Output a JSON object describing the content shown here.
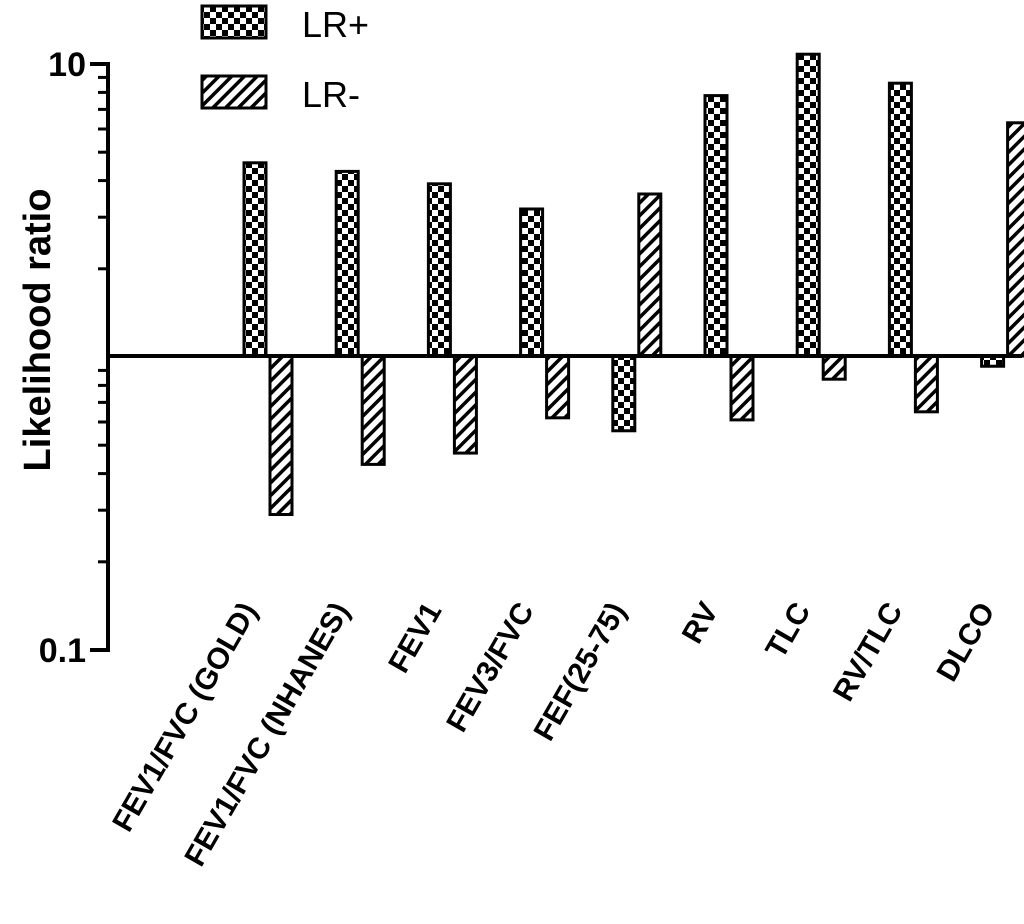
{
  "chart_data": {
    "type": "bar",
    "ylabel": "Likelihood ratio",
    "yscale": "log",
    "ylim": [
      0.1,
      10
    ],
    "yticks": [
      {
        "value": 0.1,
        "label": "0.1"
      },
      {
        "value": 10,
        "label": "10"
      }
    ],
    "baseline": 1,
    "categories": [
      "FEV1/FVC (GOLD)",
      "FEV1/FVC (NHANES)",
      "FEV1",
      "FEV3/FVC",
      "FEF(25-75)",
      "RV",
      "TLC",
      "RV/TLC",
      "DLCO"
    ],
    "series": [
      {
        "name": "LR+",
        "pattern": "checker",
        "values": [
          4.6,
          4.3,
          3.9,
          3.2,
          0.56,
          7.8,
          10.8,
          8.6,
          0.93
        ]
      },
      {
        "name": "LR-",
        "pattern": "hatch",
        "values": [
          0.29,
          0.43,
          0.47,
          0.62,
          3.6,
          0.61,
          0.84,
          0.65,
          6.3
        ]
      }
    ],
    "legend_position": "top-left",
    "colors": {
      "ink": "#000000",
      "background": "#ffffff"
    }
  }
}
